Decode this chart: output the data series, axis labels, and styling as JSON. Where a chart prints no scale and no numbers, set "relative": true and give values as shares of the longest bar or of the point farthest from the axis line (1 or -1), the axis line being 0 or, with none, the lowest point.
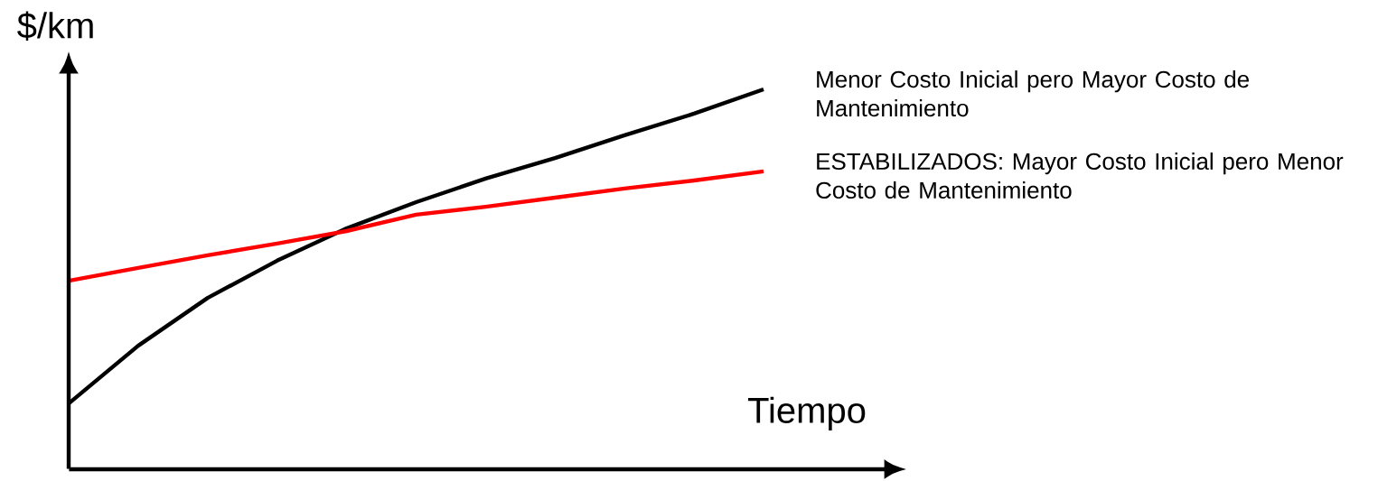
{
  "chart_data": {
    "type": "line",
    "relative": true,
    "xlabel": "Tiempo",
    "ylabel": "$/km",
    "categories": [
      null,
      null,
      null,
      null,
      null,
      null,
      null,
      null,
      null,
      null,
      null
    ],
    "series": [
      {
        "name": "Menor Costo Inicial pero Mayor Costo de Mantenimiento",
        "color": "#000000",
        "values": [
          0.173,
          0.325,
          0.451,
          0.549,
          0.634,
          0.703,
          0.765,
          0.819,
          0.879,
          0.936,
          1.0
        ]
      },
      {
        "name": "ESTABILIZADOS: Mayor Costo Inicial pero Menor Costo de Mantenimiento",
        "color": "#ff0000",
        "values": [
          0.496,
          0.53,
          0.563,
          0.594,
          0.627,
          0.67,
          0.691,
          0.715,
          0.739,
          0.76,
          0.784
        ]
      }
    ]
  }
}
